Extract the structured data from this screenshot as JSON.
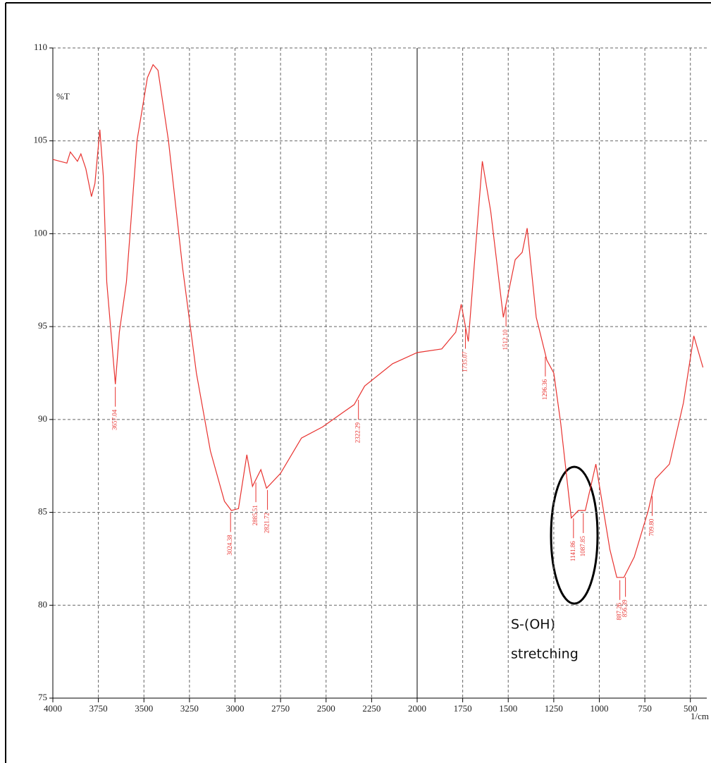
{
  "chart_data": {
    "type": "line",
    "y_label": "%T",
    "x_label": "1/cm",
    "xlim": [
      4000,
      410
    ],
    "ylim": [
      75,
      110
    ],
    "xticks": [
      4000,
      3750,
      3500,
      3250,
      3000,
      2750,
      2500,
      2250,
      2000,
      1750,
      1500,
      1250,
      1000,
      750,
      500
    ],
    "yticks": [
      75,
      80,
      85,
      90,
      95,
      100,
      105,
      110
    ],
    "grid": true,
    "series": [
      {
        "color": "#e8322f",
        "x": [
          4000,
          3923,
          3904,
          3865,
          3846,
          3819,
          3788,
          3769,
          3742,
          3723,
          3704,
          3681,
          3657,
          3635,
          3596,
          3538,
          3481,
          3450,
          3423,
          3365,
          3288,
          3212,
          3135,
          3058,
          3020,
          2981,
          2935,
          2904,
          2858,
          2827,
          2750,
          2635,
          2519,
          2404,
          2346,
          2288,
          2135,
          2000,
          1865,
          1788,
          1758,
          1719,
          1642,
          1596,
          1527,
          1462,
          1423,
          1396,
          1346,
          1288,
          1250,
          1212,
          1154,
          1115,
          1077,
          1019,
          942,
          904,
          865,
          808,
          731,
          692,
          615,
          538,
          481,
          431
        ],
        "values": [
          104.0,
          103.8,
          104.4,
          103.9,
          104.3,
          103.5,
          102.0,
          102.7,
          105.6,
          103.1,
          97.4,
          94.7,
          91.9,
          94.7,
          97.4,
          105.0,
          108.4,
          109.1,
          108.8,
          105.0,
          98.2,
          92.5,
          88.3,
          85.6,
          85.1,
          85.2,
          88.1,
          86.4,
          87.3,
          86.3,
          87.1,
          89.0,
          89.6,
          90.4,
          90.8,
          91.8,
          93.0,
          93.6,
          93.8,
          94.7,
          96.2,
          94.2,
          103.9,
          101.2,
          95.5,
          98.6,
          99.0,
          100.3,
          95.5,
          93.2,
          92.5,
          89.8,
          84.7,
          85.1,
          85.1,
          87.6,
          83.0,
          81.5,
          81.5,
          82.6,
          85.1,
          86.8,
          87.6,
          90.9,
          94.5,
          92.8
        ]
      }
    ],
    "peaks": [
      3657.04,
      3024.38,
      2885.51,
      2821.72,
      2322.29,
      1735.07,
      1512.1,
      1296.36,
      1141.86,
      1087.85,
      887.26,
      856.39,
      709.8
    ],
    "peak_labels": [
      "3657.04",
      "3024.38",
      "2885.51",
      "2821.72",
      "2322.29",
      "1735.07",
      "1512.10",
      "1296.36",
      "1141.86",
      "1087.85",
      "887.26",
      "856.39",
      "709.80"
    ],
    "annotation": {
      "lines": [
        "S-(OH)",
        "stretching"
      ]
    }
  }
}
